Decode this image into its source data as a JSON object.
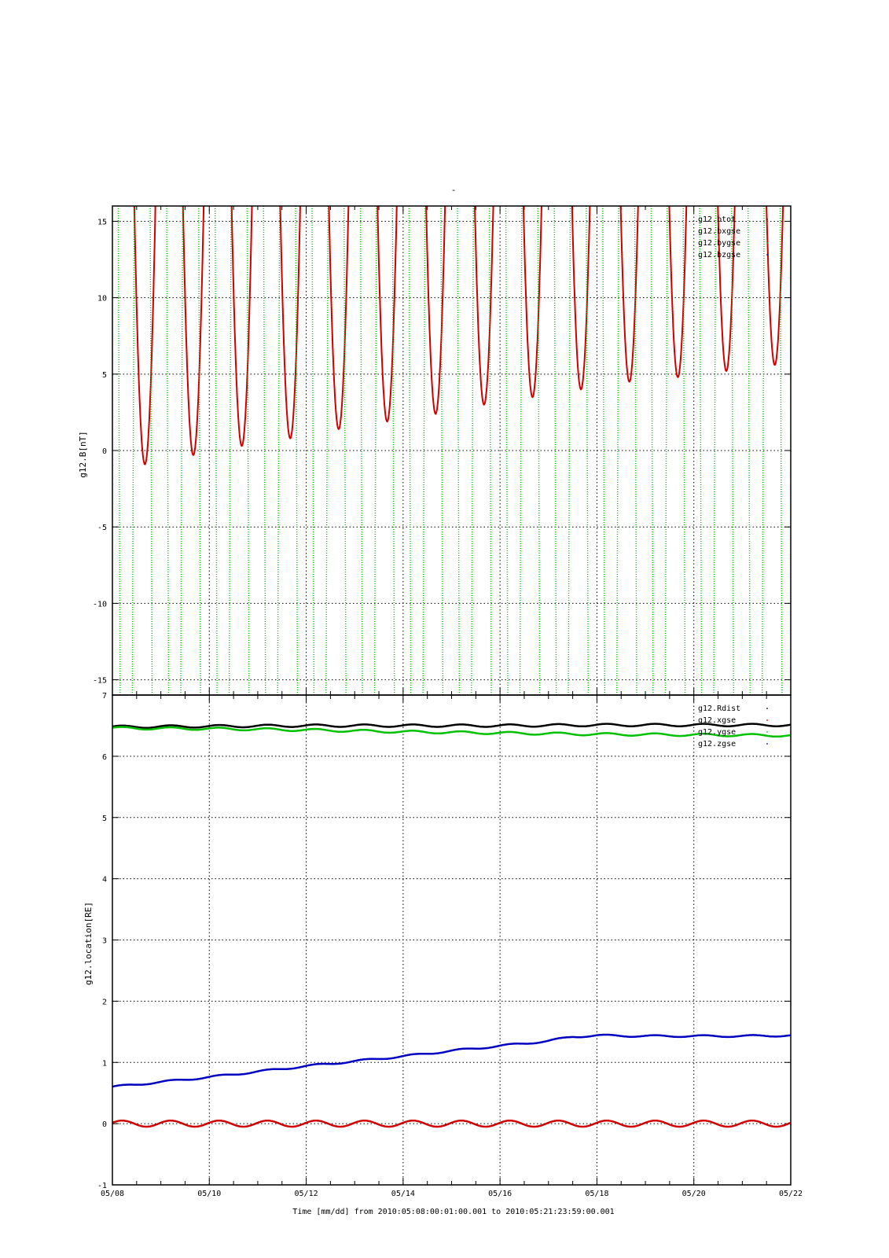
{
  "figure": {
    "title": "-",
    "xlabel": "Time [mm/dd]  from 2010:05:08:00:01:00.001  to  2010:05:21:23:59:00.001"
  },
  "chart_data": [
    {
      "type": "line",
      "ylabel": "g12.B[nT]",
      "ylim": [
        -16,
        16
      ],
      "yticks": [
        -15,
        -10,
        -5,
        0,
        5,
        10,
        15
      ],
      "xlim_days": [
        0,
        14
      ],
      "xticks": [
        "05/08",
        "05/10",
        "05/12",
        "05/14",
        "05/16",
        "05/18",
        "05/20",
        "05/22"
      ],
      "grid": true,
      "legend_position": "top-right",
      "series": [
        {
          "name": "g12.btot",
          "color": "#000000",
          "visible_in_range": false
        },
        {
          "name": "g12.bxgse",
          "color": "#d00000",
          "shape": "daily dips (period 1 day, first minimum near 05/08 16:00, clipped above +16)",
          "daily_minima": [
            -0.9,
            -0.3,
            0.3,
            0.8,
            1.4,
            1.9,
            2.4,
            3.0,
            3.5,
            4.0,
            4.5,
            4.8,
            5.2,
            5.6
          ]
        },
        {
          "name": "g12.bygse",
          "color": "#00c000",
          "shape": "sparse dotted near-vertical sweeps spanning the full range, about 3 per day"
        },
        {
          "name": "g12.bzgse",
          "color": "#0000c0",
          "visible_in_range": false
        }
      ]
    },
    {
      "type": "line",
      "ylabel": "g12.location[RE]",
      "ylim": [
        -1,
        7
      ],
      "yticks": [
        -1,
        0,
        1,
        2,
        3,
        4,
        5,
        6,
        7
      ],
      "xlim_days": [
        0,
        14
      ],
      "xticks": [
        "05/08",
        "05/10",
        "05/12",
        "05/14",
        "05/16",
        "05/18",
        "05/20",
        "05/22"
      ],
      "grid": true,
      "legend_position": "top-right",
      "series": [
        {
          "name": "g12.Rdist",
          "color": "#000000",
          "x_days": [
            0,
            2,
            4,
            6,
            8,
            10,
            12,
            14
          ],
          "values": [
            6.48,
            6.49,
            6.5,
            6.5,
            6.5,
            6.51,
            6.51,
            6.51
          ],
          "daily_oscillation": 0.02
        },
        {
          "name": "g12.xgse",
          "color": "#d00000",
          "x_days": [
            0,
            2,
            4,
            6,
            8,
            10,
            12,
            14
          ],
          "values": [
            0.0,
            0.0,
            0.0,
            0.0,
            0.0,
            0.0,
            0.0,
            0.0
          ],
          "daily_oscillation": 0.05
        },
        {
          "name": "g12.ygse",
          "color": "#00c000",
          "x_days": [
            0,
            2,
            4,
            6,
            8,
            10,
            12,
            14
          ],
          "values": [
            6.46,
            6.45,
            6.43,
            6.4,
            6.38,
            6.36,
            6.35,
            6.34
          ],
          "daily_oscillation": 0.02
        },
        {
          "name": "g12.zgse",
          "color": "#0000c0",
          "x_days": [
            0,
            1,
            2,
            3,
            4,
            5,
            6,
            7,
            8,
            9,
            9.5,
            10,
            11,
            12,
            13,
            14
          ],
          "values": [
            0.6,
            0.68,
            0.76,
            0.85,
            0.94,
            1.02,
            1.1,
            1.19,
            1.27,
            1.35,
            1.42,
            1.44,
            1.43,
            1.43,
            1.43,
            1.44
          ],
          "daily_oscillation": 0.015
        }
      ]
    }
  ]
}
